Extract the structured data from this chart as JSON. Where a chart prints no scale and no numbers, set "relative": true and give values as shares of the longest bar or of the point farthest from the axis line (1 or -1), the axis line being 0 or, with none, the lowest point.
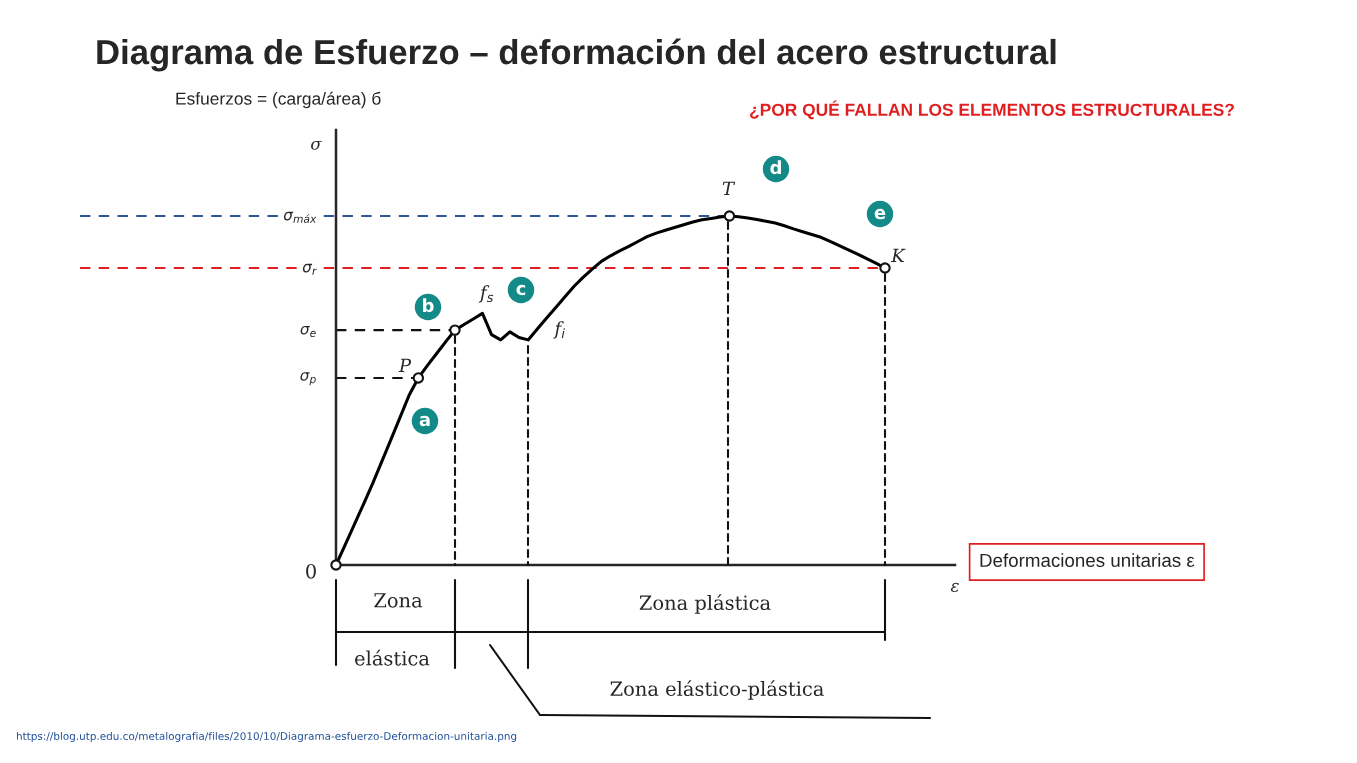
{
  "chart_data": {
    "type": "line",
    "relative": true,
    "title": "Diagrama de Esfuerzo – deformación del acero estructural",
    "subtitle": "¿POR QUÉ FALLAN LOS ELEMENTOS ESTRUCTURALES?",
    "xlabel": "Deformaciones unitarias ε",
    "categories": [
      null,
      null,
      null,
      null,
      null,
      null,
      null,
      null,
      null,
      null,
      null,
      null,
      null,
      null,
      null,
      null,
      null,
      null,
      null,
      null,
      null,
      null,
      null,
      null,
      null,
      null,
      null,
      null,
      null,
      null,
      null,
      null,
      null,
      null,
      null,
      null,
      null,
      null,
      null,
      null,
      null,
      null,
      null,
      null,
      null,
      null,
      null,
      null,
      null,
      null,
      null,
      null,
      null,
      null,
      null,
      null,
      null,
      null,
      null,
      null,
      null
    ],
    "series": [
      {
        "color": "#000000",
        "marker": "none",
        "line_style": "solid",
        "values": [
          0,
          0.058,
          0.116,
          0.174,
          0.233,
          0.296,
          0.359,
          0.423,
          0.487,
          0.536,
          0.572,
          0.606,
          0.64,
          0.673,
          0.689,
          0.705,
          0.721,
          0.66,
          0.645,
          0.668,
          0.652,
          0.645,
          0.676,
          0.707,
          0.737,
          0.768,
          0.798,
          0.824,
          0.848,
          0.87,
          0.886,
          0.9,
          0.913,
          0.927,
          0.941,
          0.951,
          0.959,
          0.967,
          0.975,
          0.983,
          0.989,
          0.993,
          0.997,
          1.0,
          0.998,
          0.994,
          0.99,
          0.985,
          0.98,
          0.972,
          0.963,
          0.955,
          0.947,
          0.939,
          0.927,
          0.915,
          0.903,
          0.891,
          0.878,
          0.865,
          0.851
        ]
      }
    ],
    "ref_lines": [
      {
        "axis": "y",
        "value": 1.0,
        "label": "σ$_{máx}$",
        "color": "#2f5597",
        "line_style": "dashed"
      },
      {
        "axis": "y",
        "value": 0.851,
        "label": "σ$_{r}$",
        "color": "#e02020",
        "line_style": "dashed"
      },
      {
        "axis": "y",
        "value": 0.673,
        "label": "σ$_{e}$",
        "color": "#111111",
        "line_style": "dashed"
      },
      {
        "axis": "y",
        "value": 0.536,
        "label": "σ$_{p}$",
        "color": "#111111",
        "line_style": "dashed"
      }
    ],
    "annotations": [
      "a",
      "b",
      "c",
      "d",
      "e",
      "σ",
      "0",
      "ε",
      "Zona",
      "elástica",
      "Zona plástica",
      "Zona elástico-plástica",
      "https://blog.utp.edu.co/metalografia/files/2010/10/Diagrama-esfuerzo-Deformacion-unitaria.png",
      "P",
      "f$_{s}$",
      "f$_{i}$",
      "T",
      "K",
      "Esfuerzos = (carga/área) б"
    ],
    "legend": false
  }
}
